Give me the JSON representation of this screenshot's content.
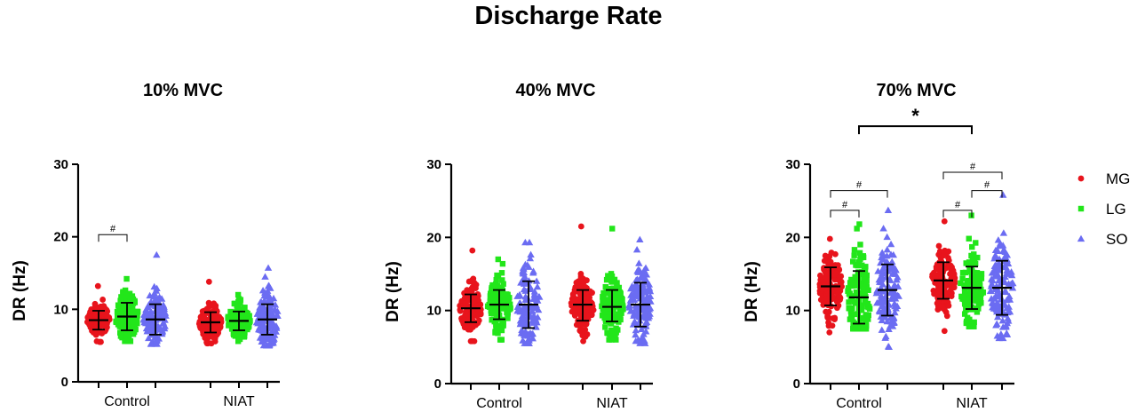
{
  "title": "Discharge Rate",
  "chart_data": [
    {
      "type": "scatter",
      "title": "10% MVC",
      "ylabel": "DR (Hz)",
      "ylim": [
        0,
        30
      ],
      "yticks": [
        0,
        10,
        20,
        30
      ],
      "groups": [
        "Control",
        "NIAT"
      ],
      "series": [
        {
          "name": "MG",
          "color": "#e8141c",
          "shape": "circle",
          "mean": [
            8.5,
            8.2
          ],
          "sd_low": [
            7.2,
            6.8
          ],
          "sd_high": [
            9.8,
            9.6
          ],
          "min": [
            5.5,
            5.3
          ],
          "max": [
            13.2,
            13.8
          ]
        },
        {
          "name": "LG",
          "color": "#22e61a",
          "shape": "square",
          "mean": [
            9.0,
            8.4
          ],
          "sd_low": [
            7.1,
            7.1
          ],
          "sd_high": [
            10.9,
            9.7
          ],
          "min": [
            5.6,
            5.6
          ],
          "max": [
            14.2,
            12.0
          ]
        },
        {
          "name": "SO",
          "color": "#6b6cf2",
          "shape": "triangle",
          "mean": [
            8.6,
            8.6
          ],
          "sd_low": [
            6.5,
            6.5
          ],
          "sd_high": [
            10.7,
            10.7
          ],
          "min": [
            5.2,
            5.0
          ],
          "max": [
            17.5,
            15.7
          ]
        }
      ],
      "annotations": [
        {
          "label": "#",
          "group": 0,
          "from": 0,
          "to": 1,
          "level": 20.3
        }
      ]
    },
    {
      "type": "scatter",
      "title": "40% MVC",
      "ylabel": "DR (Hz)",
      "ylim": [
        0,
        30
      ],
      "yticks": [
        0,
        10,
        20,
        30
      ],
      "groups": [
        "Control",
        "NIAT"
      ],
      "series": [
        {
          "name": "MG",
          "color": "#e8141c",
          "shape": "circle",
          "mean": [
            10.3,
            10.8
          ],
          "sd_low": [
            8.4,
            8.6
          ],
          "sd_high": [
            12.2,
            12.8
          ],
          "min": [
            5.8,
            5.8
          ],
          "max": [
            18.2,
            21.5
          ]
        },
        {
          "name": "LG",
          "color": "#22e61a",
          "shape": "square",
          "mean": [
            10.8,
            10.5
          ],
          "sd_low": [
            8.8,
            8.5
          ],
          "sd_high": [
            12.8,
            12.8
          ],
          "min": [
            6.0,
            6.0
          ],
          "max": [
            17.0,
            21.2
          ]
        },
        {
          "name": "SO",
          "color": "#6b6cf2",
          "shape": "triangle",
          "mean": [
            10.8,
            10.8
          ],
          "sd_low": [
            7.6,
            7.8
          ],
          "sd_high": [
            14.0,
            13.8
          ],
          "min": [
            5.5,
            5.5
          ],
          "max": [
            19.3,
            19.7
          ]
        }
      ],
      "annotations": []
    },
    {
      "type": "scatter",
      "title": "70% MVC",
      "ylabel": "DR (Hz)",
      "ylim": [
        0,
        30
      ],
      "yticks": [
        0,
        10,
        20,
        30
      ],
      "groups": [
        "Control",
        "NIAT"
      ],
      "series": [
        {
          "name": "MG",
          "color": "#e8141c",
          "shape": "circle",
          "mean": [
            13.3,
            14.1
          ],
          "sd_low": [
            10.7,
            11.6
          ],
          "sd_high": [
            15.9,
            16.6
          ],
          "min": [
            7.0,
            7.2
          ],
          "max": [
            19.8,
            22.2
          ]
        },
        {
          "name": "LG",
          "color": "#22e61a",
          "shape": "square",
          "mean": [
            11.8,
            13.1
          ],
          "sd_low": [
            8.2,
            10.2
          ],
          "sd_high": [
            15.4,
            16.0
          ],
          "min": [
            7.5,
            7.8
          ],
          "max": [
            21.8,
            23.0
          ]
        },
        {
          "name": "SO",
          "color": "#6b6cf2",
          "shape": "triangle",
          "mean": [
            12.8,
            13.1
          ],
          "sd_low": [
            9.3,
            9.4
          ],
          "sd_high": [
            16.3,
            16.8
          ],
          "min": [
            5.0,
            6.2
          ],
          "max": [
            23.7,
            25.8
          ]
        }
      ],
      "annotations": [
        {
          "label": "#",
          "group": 0,
          "from": 0,
          "to": 1,
          "level": 23.7
        },
        {
          "label": "#",
          "group": 0,
          "from": 0,
          "to": 2,
          "level": 26.4
        },
        {
          "label": "#",
          "group": 1,
          "from": 0,
          "to": 1,
          "level": 23.7
        },
        {
          "label": "#",
          "group": 1,
          "from": 1,
          "to": 2,
          "level": 26.4
        },
        {
          "label": "#",
          "group": 1,
          "from": 0,
          "to": 2,
          "level": 28.9
        },
        {
          "label": "*",
          "between_groups": true,
          "series": 1,
          "level": 35.2
        }
      ]
    }
  ],
  "legend": {
    "position": "right",
    "items": [
      {
        "name": "MG",
        "color": "#e8141c",
        "shape": "circle"
      },
      {
        "name": "LG",
        "color": "#22e61a",
        "shape": "square"
      },
      {
        "name": "SO",
        "color": "#6b6cf2",
        "shape": "triangle"
      }
    ]
  }
}
